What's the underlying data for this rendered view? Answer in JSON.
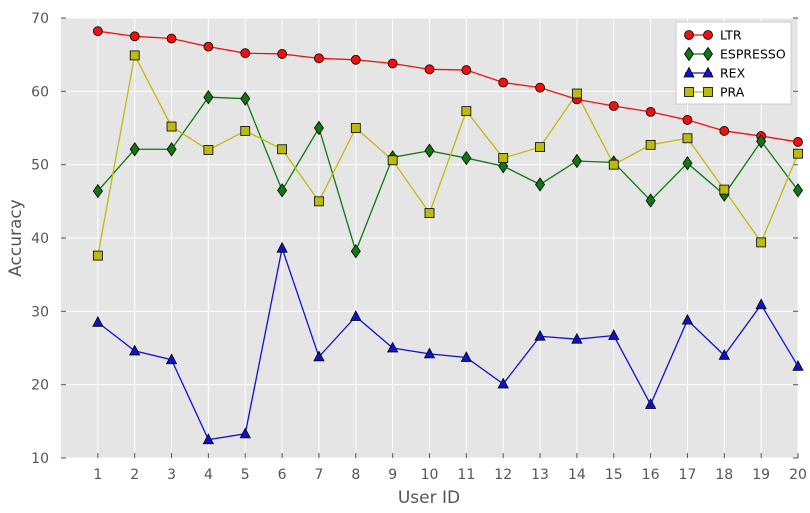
{
  "chart_data": {
    "type": "line",
    "title": "",
    "xlabel": "User ID",
    "ylabel": "Accuracy",
    "x": [
      1,
      2,
      3,
      4,
      5,
      6,
      7,
      8,
      9,
      10,
      11,
      12,
      13,
      14,
      15,
      16,
      17,
      18,
      19,
      20
    ],
    "x_ticks": [
      "1",
      "2",
      "3",
      "4",
      "5",
      "6",
      "7",
      "8",
      "9",
      "10",
      "11",
      "12",
      "13",
      "14",
      "15",
      "16",
      "17",
      "18",
      "19",
      "20"
    ],
    "xlim": [
      0,
      20
    ],
    "ylim": [
      10,
      70
    ],
    "y_ticks": [
      10,
      20,
      30,
      40,
      50,
      60,
      70
    ],
    "grid": true,
    "background": "#e5e5e5",
    "legend_position": "top-right",
    "series": [
      {
        "name": "LTR",
        "color": "#ee1111",
        "marker": "circle",
        "values": [
          68.2,
          67.5,
          67.2,
          66.1,
          65.2,
          65.1,
          64.5,
          64.3,
          63.8,
          63.0,
          62.9,
          61.2,
          60.5,
          58.9,
          58.0,
          57.2,
          56.1,
          54.6,
          53.9,
          53.1
        ]
      },
      {
        "name": "ESPRESSO",
        "color": "#117711",
        "marker": "diamond",
        "values": [
          46.4,
          52.1,
          52.1,
          59.2,
          59.0,
          46.5,
          55.0,
          38.2,
          51.0,
          51.9,
          50.9,
          49.8,
          47.3,
          50.5,
          50.3,
          45.1,
          50.2,
          45.9,
          53.2,
          46.5
        ]
      },
      {
        "name": "REX",
        "color": "#1111cc",
        "marker": "triangle",
        "values": [
          28.5,
          24.6,
          23.4,
          12.5,
          13.3,
          38.6,
          23.8,
          29.3,
          25.0,
          24.2,
          23.7,
          20.1,
          26.6,
          26.2,
          26.7,
          17.3,
          28.8,
          24.0,
          30.9,
          22.5
        ]
      },
      {
        "name": "PRA",
        "color": "#bbbb11",
        "marker": "square",
        "values": [
          37.6,
          64.9,
          55.2,
          52.0,
          54.6,
          52.1,
          45.0,
          55.0,
          50.6,
          43.4,
          57.3,
          50.9,
          52.4,
          59.7,
          50.0,
          52.7,
          53.6,
          46.6,
          39.4,
          51.5
        ]
      }
    ]
  }
}
